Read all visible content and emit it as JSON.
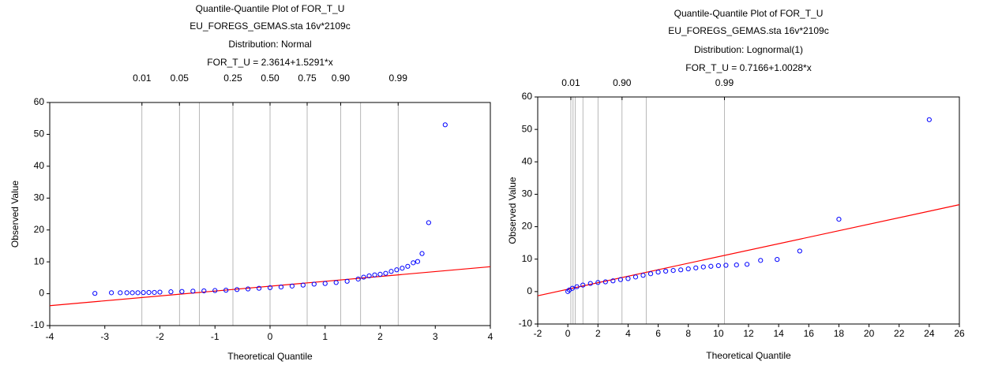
{
  "chart_data": [
    {
      "type": "scatter",
      "title": "Quantile-Quantile Plot of FOR_T_U",
      "subtitle": "EU_FOREGS_GEMAS.sta 16v*2109c",
      "distribution": "Distribution: Normal",
      "equation": "FOR_T_U = 2.3614+1.5291*x",
      "x_label": "Theoretical Quantile",
      "y_label": "Observed Value",
      "x": [
        -3.18,
        -2.88,
        -2.72,
        -2.6,
        -2.5,
        -2.4,
        -2.3,
        -2.2,
        -2.1,
        -2,
        -1.8,
        -1.6,
        -1.4,
        -1.2,
        -1,
        -0.8,
        -0.6,
        -0.4,
        -0.2,
        0,
        0.2,
        0.4,
        0.6,
        0.8,
        1,
        1.2,
        1.4,
        1.6,
        1.7,
        1.8,
        1.9,
        2,
        2.1,
        2.2,
        2.3,
        2.4,
        2.5,
        2.6,
        2.68,
        2.76,
        2.88,
        3.18
      ],
      "y": [
        0.1,
        0.3,
        0.3,
        0.3,
        0.3,
        0.3,
        0.35,
        0.4,
        0.4,
        0.5,
        0.6,
        0.7,
        0.8,
        0.9,
        1,
        1.1,
        1.3,
        1.5,
        1.7,
        1.9,
        2.1,
        2.4,
        2.7,
        3,
        3.2,
        3.5,
        3.9,
        4.6,
        5.2,
        5.6,
        5.9,
        6.1,
        6.4,
        7,
        7.5,
        8,
        8.6,
        9.7,
        10.1,
        12.6,
        22.3,
        53
      ],
      "point_color": "#0000ff",
      "fit": {
        "intercept": 2.3614,
        "slope": 1.5291,
        "color": "#ff0000"
      },
      "xlim": [
        -4,
        4
      ],
      "xticks": [
        -4,
        -3,
        -2,
        -1,
        0,
        1,
        2,
        3,
        4
      ],
      "ylim": [
        -10,
        60
      ],
      "yticks": [
        -10,
        0,
        10,
        20,
        30,
        40,
        50,
        60
      ],
      "quantile_lines": [
        -2.326,
        -1.645,
        -1.282,
        -0.674,
        0,
        0.674,
        1.282,
        1.645,
        2.326
      ],
      "top_ticks": [
        {
          "value": -2.326,
          "label": "0.01"
        },
        {
          "value": -1.645,
          "label": "0.05"
        },
        {
          "value": -0.674,
          "label": "0.25"
        },
        {
          "value": 0,
          "label": "0.50"
        },
        {
          "value": 0.674,
          "label": "0.75"
        },
        {
          "value": 1.282,
          "label": "0.90"
        },
        {
          "value": 2.326,
          "label": "0.99"
        }
      ]
    },
    {
      "type": "scatter",
      "title": "Quantile-Quantile Plot of FOR_T_U",
      "subtitle": "EU_FOREGS_GEMAS.sta 16v*2109c",
      "distribution": "Distribution: Lognormal(1)",
      "equation": "FOR_T_U = 0.7166+1.0028*x",
      "x_label": "Theoretical Quantile",
      "y_label": "Observed Value",
      "x": [
        0,
        0.1,
        0.3,
        0.6,
        1,
        1.5,
        2,
        2.5,
        3,
        3.5,
        4,
        4.5,
        5,
        5.5,
        6,
        6.5,
        7,
        7.5,
        8,
        8.5,
        9,
        9.5,
        10,
        10.5,
        11.2,
        11.9,
        12.8,
        13.9,
        15.4,
        18,
        24
      ],
      "y": [
        0,
        0.5,
        1,
        1.5,
        2,
        2.5,
        2.8,
        3,
        3.3,
        3.7,
        4,
        4.5,
        5,
        5.5,
        6,
        6.3,
        6.5,
        6.7,
        7,
        7.3,
        7.6,
        7.8,
        8,
        8.1,
        8.2,
        8.4,
        9.6,
        9.9,
        12.5,
        22.3,
        53
      ],
      "point_color": "#0000ff",
      "fit": {
        "intercept": 0.7166,
        "slope": 1.0028,
        "color": "#ff0000"
      },
      "xlim": [
        -2,
        26
      ],
      "xticks": [
        -2,
        0,
        2,
        4,
        6,
        8,
        10,
        12,
        14,
        16,
        18,
        20,
        22,
        24,
        26
      ],
      "ylim": [
        -10,
        60
      ],
      "yticks": [
        -10,
        0,
        10,
        20,
        30,
        40,
        50,
        60
      ],
      "quantile_lines": [
        0.2,
        0.35,
        0.5,
        1,
        2,
        3.6,
        5.2,
        10.4
      ],
      "top_ticks": [
        {
          "value": 0.2,
          "label": "0.01"
        },
        {
          "value": 3.6,
          "label": "0.90"
        },
        {
          "value": 10.4,
          "label": "0.99"
        }
      ]
    }
  ]
}
